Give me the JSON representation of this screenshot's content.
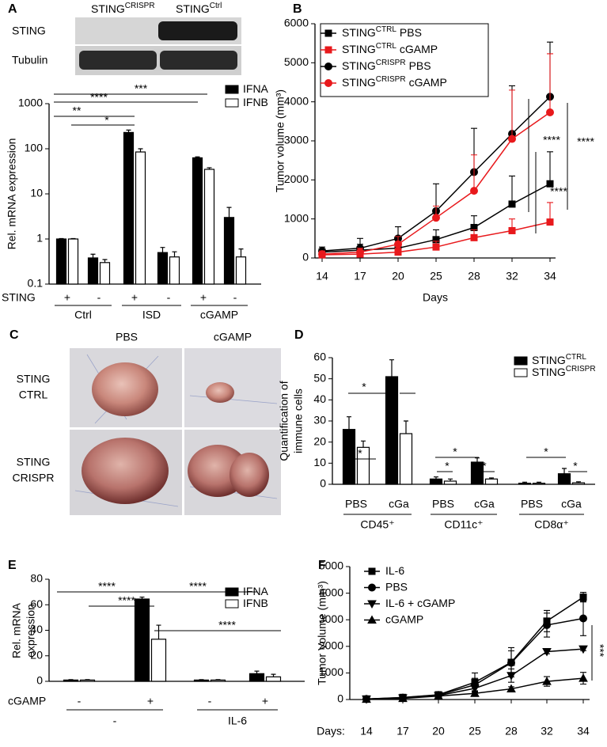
{
  "figure": {
    "panel_labels": [
      "A",
      "B",
      "C",
      "D",
      "E",
      "F"
    ],
    "blot": {
      "column_headers": [
        {
          "text": "STING",
          "sup": "CRISPR"
        },
        {
          "text": "STING",
          "sup": "Ctrl"
        }
      ],
      "row_labels": [
        "STING",
        "Tubulin"
      ]
    },
    "photos": {
      "column_labels": [
        "PBS",
        "cGAMP"
      ],
      "row_labels": [
        [
          "STING",
          "CTRL"
        ],
        [
          "STING",
          "CRISPR"
        ]
      ]
    }
  },
  "chart_data": [
    {
      "type": "bar",
      "y_label": "Rel. mRNA expression",
      "log_scale": true,
      "ylim": [
        0.1,
        1000
      ],
      "yticks": [
        0.1,
        1,
        10,
        100,
        1000
      ],
      "category_row_label": "STING",
      "categories": [
        "+",
        "-",
        "+",
        "-",
        "+",
        "-"
      ],
      "groups": [
        "Ctrl",
        "ISD",
        "cGAMP"
      ],
      "series": [
        {
          "name": "IFNA",
          "color": "#000000",
          "values": [
            1,
            0.38,
            230,
            0.5,
            63,
            3
          ],
          "errors": [
            0.02,
            0.08,
            30,
            0.15,
            3,
            2
          ]
        },
        {
          "name": "IFNB",
          "color": "#ffffff",
          "values": [
            1,
            0.3,
            85,
            0.4,
            35,
            0.4
          ],
          "errors": [
            0.02,
            0.05,
            15,
            0.12,
            3,
            0.2
          ]
        }
      ],
      "annotations": [
        "***",
        "****",
        "**",
        "*"
      ],
      "legend": "upper right"
    },
    {
      "type": "line",
      "x_label": "Days",
      "y_label": "Tumor volume (mm³)",
      "categories": [
        14,
        17,
        20,
        25,
        28,
        32,
        34
      ],
      "ylim": [
        0,
        6000
      ],
      "yticks": [
        0,
        1000,
        2000,
        3000,
        4000,
        5000,
        6000
      ],
      "series": [
        {
          "name": "STING",
          "name_sup": "CTRL",
          "name_rest": "PBS",
          "color": "#000000",
          "marker": "square",
          "values": [
            150,
            200,
            250,
            470,
            780,
            1380,
            1900
          ],
          "errors": [
            80,
            150,
            150,
            250,
            300,
            720,
            820
          ]
        },
        {
          "name": "STING",
          "name_sup": "CTRL",
          "name_rest": "cGAMP",
          "color": "#e8191c",
          "marker": "square",
          "values": [
            80,
            100,
            150,
            280,
            520,
            700,
            920
          ],
          "errors": [
            50,
            80,
            100,
            150,
            200,
            300,
            500
          ]
        },
        {
          "name": "STING",
          "name_sup": "CRISPR",
          "name_rest": "PBS",
          "color": "#000000",
          "marker": "circle",
          "values": [
            180,
            250,
            500,
            1200,
            2200,
            3180,
            4130
          ],
          "errors": [
            100,
            250,
            300,
            700,
            1120,
            1230,
            1400
          ]
        },
        {
          "name": "STING",
          "name_sup": "CRISPR",
          "name_rest": "cGAMP",
          "color": "#e8191c",
          "marker": "circle",
          "values": [
            100,
            150,
            350,
            1030,
            1720,
            3050,
            3730
          ],
          "errors": [
            80,
            100,
            200,
            300,
            920,
            1250,
            1500
          ]
        }
      ],
      "annotations": [
        "****",
        "****",
        "****"
      ],
      "legend": "upper left"
    },
    {
      "type": "bar",
      "y_label": [
        "Quantification of",
        "immune cells"
      ],
      "ylim": [
        0,
        60
      ],
      "yticks": [
        0,
        10,
        20,
        30,
        40,
        50,
        60
      ],
      "categories": [
        "PBS",
        "cGa",
        "PBS",
        "cGa",
        "PBS",
        "cGa"
      ],
      "groups": [
        "CD45⁺",
        "CD11c⁺",
        "CD8α⁺"
      ],
      "series": [
        {
          "name": "STING",
          "name_sup": "CTRL",
          "color": "#000000",
          "values": [
            26,
            51,
            2.5,
            10.5,
            0.5,
            5
          ],
          "errors": [
            6,
            8,
            1,
            2,
            0.5,
            2.5
          ]
        },
        {
          "name": "STING",
          "name_sup": "CRISPR",
          "color": "#ffffff",
          "values": [
            17.5,
            24,
            1.5,
            2.5,
            0.5,
            0.7
          ],
          "errors": [
            3,
            6,
            1,
            0.5,
            0.5,
            0.5
          ]
        }
      ],
      "annotations": [
        "*",
        "*",
        "*",
        "*",
        "*",
        "*",
        "*",
        "*"
      ],
      "legend": "upper right"
    },
    {
      "type": "bar",
      "y_label": [
        "Rel. mRNA",
        "expression"
      ],
      "ylim": [
        0,
        80
      ],
      "yticks": [
        0,
        20,
        40,
        60,
        80
      ],
      "category_row_label": "cGAMP",
      "categories": [
        "-",
        "+",
        "-",
        "+"
      ],
      "groups": [
        "-",
        "IL-6"
      ],
      "series": [
        {
          "name": "IFNA",
          "color": "#000000",
          "values": [
            1,
            64.5,
            1,
            6
          ],
          "errors": [
            0.3,
            1.5,
            0.3,
            2
          ]
        },
        {
          "name": "IFNB",
          "color": "#ffffff",
          "values": [
            1,
            33,
            1,
            3.5
          ],
          "errors": [
            0.3,
            11,
            0.3,
            2
          ]
        }
      ],
      "annotations": [
        "****",
        "****",
        "****",
        "****"
      ],
      "legend": "upper right"
    },
    {
      "type": "line",
      "x_label": "Days:",
      "y_label": "Tumor Volume (mm³)",
      "categories": [
        14,
        17,
        20,
        25,
        28,
        32,
        34
      ],
      "ylim": [
        0,
        5000
      ],
      "yticks": [
        0,
        1000,
        2000,
        3000,
        4000,
        5000
      ],
      "series": [
        {
          "name": "IL-6",
          "color": "#000000",
          "marker": "square",
          "values": [
            20,
            80,
            180,
            650,
            1400,
            2950,
            3850
          ],
          "errors": [
            20,
            40,
            60,
            350,
            550,
            400,
            180
          ]
        },
        {
          "name": "PBS",
          "color": "#000000",
          "marker": "circle",
          "values": [
            20,
            70,
            170,
            550,
            1380,
            2800,
            3050
          ],
          "errors": [
            20,
            40,
            60,
            250,
            450,
            450,
            650
          ]
        },
        {
          "name": "IL-6 + cGAMP",
          "color": "#000000",
          "marker": "triangle-down",
          "values": [
            20,
            60,
            150,
            420,
            900,
            1800,
            1900
          ],
          "errors": [
            15,
            30,
            50,
            150,
            250,
            80,
            60
          ]
        },
        {
          "name": "cGAMP",
          "color": "#000000",
          "marker": "triangle-up",
          "values": [
            10,
            40,
            130,
            230,
            400,
            680,
            800
          ],
          "errors": [
            10,
            20,
            40,
            100,
            80,
            180,
            220
          ]
        }
      ],
      "annotations": [
        "***"
      ],
      "legend": "upper left"
    }
  ]
}
